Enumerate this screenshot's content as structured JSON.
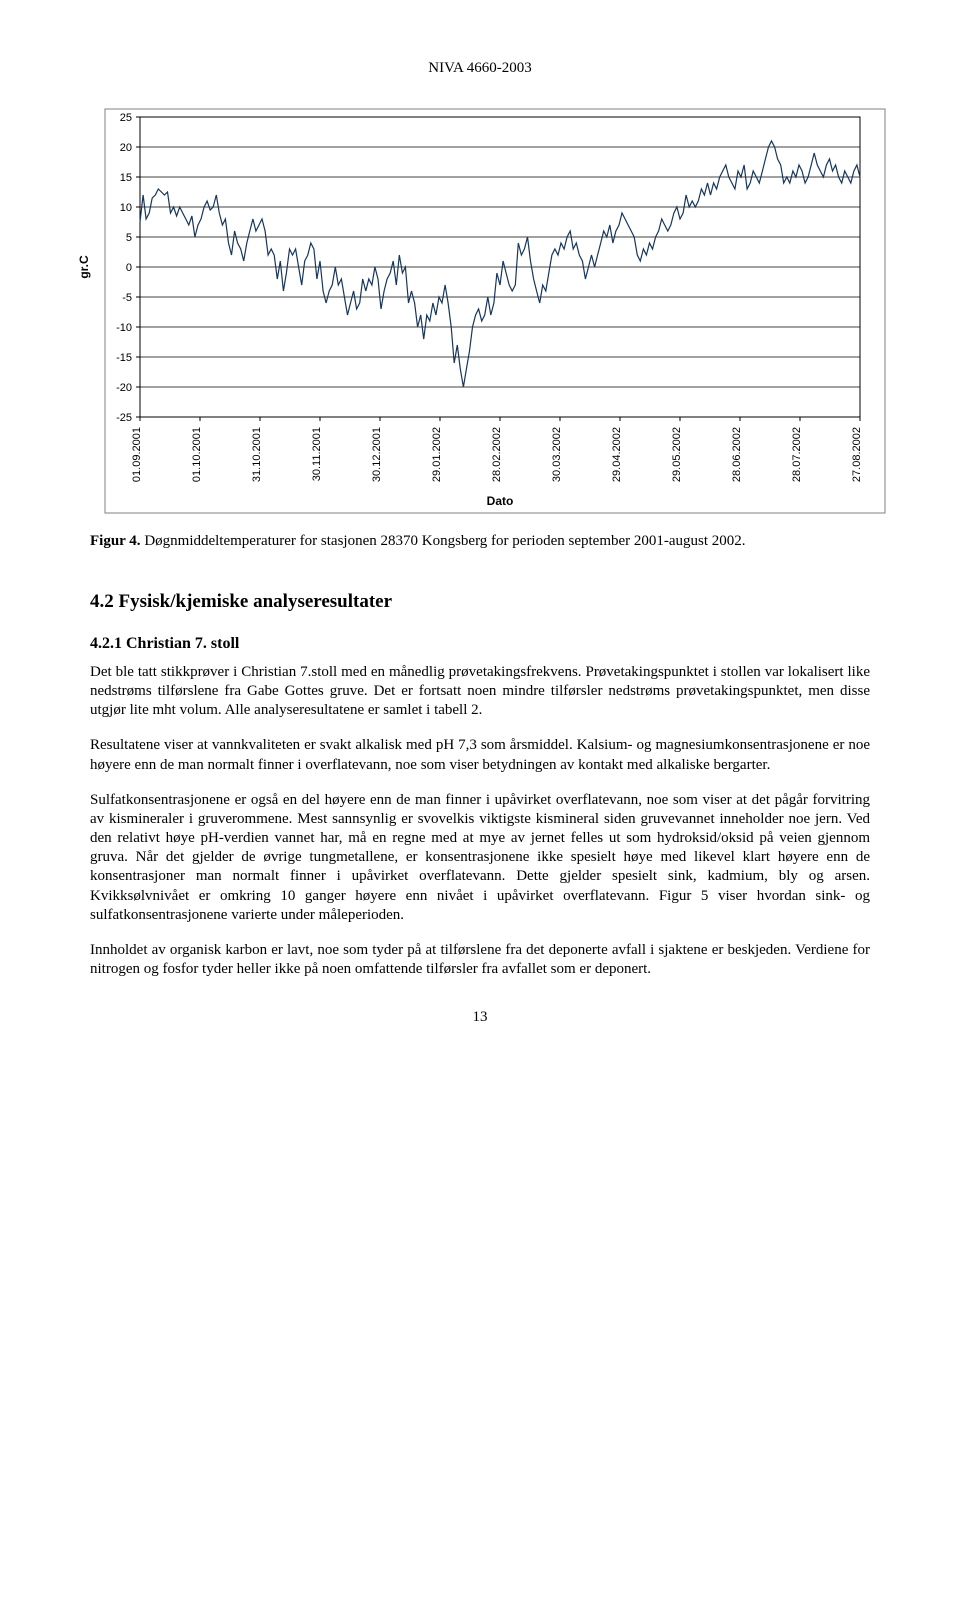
{
  "header": {
    "code": "NIVA 4660-2003"
  },
  "chart": {
    "type": "line",
    "ylabel": "gr.C",
    "xlabel": "Dato",
    "ylim": [
      -25,
      25
    ],
    "ytick_step": 5,
    "yticks": [
      -25,
      -20,
      -15,
      -10,
      -5,
      0,
      5,
      10,
      15,
      20,
      25
    ],
    "x_categories": [
      "01.09.2001",
      "01.10.2001",
      "31.10.2001",
      "30.11.2001",
      "30.12.2001",
      "29.01.2002",
      "28.02.2002",
      "30.03.2002",
      "29.04.2002",
      "29.05.2002",
      "28.06.2002",
      "28.07.2002",
      "27.08.2002"
    ],
    "line_color": "#17365d",
    "line_width": 1.2,
    "grid_color": "#000000",
    "border_color": "#808080",
    "plot_bg": "#ffffff",
    "font": {
      "tick_size": 11,
      "label_size": 12,
      "weight_label": "bold"
    },
    "series": [
      7.5,
      12,
      8,
      9,
      11.5,
      12,
      13,
      12.5,
      12,
      12.5,
      9,
      10,
      8.5,
      10,
      9,
      8,
      7,
      8.5,
      5,
      7,
      8,
      10,
      11,
      9.5,
      10,
      12,
      9,
      7,
      8,
      4,
      2,
      6,
      4,
      3,
      1,
      4,
      6,
      8,
      6,
      7,
      8,
      6,
      2,
      3,
      2,
      -2,
      1,
      -4,
      -1,
      3,
      2,
      3,
      0,
      -3,
      1,
      2,
      4,
      3,
      -2,
      1,
      -4,
      -6,
      -4,
      -3,
      0,
      -3,
      -2,
      -5,
      -8,
      -6,
      -4,
      -7,
      -6,
      -2,
      -4,
      -2,
      -3,
      0,
      -2,
      -7,
      -4,
      -2,
      -1,
      1,
      -3,
      2,
      -1,
      0,
      -6,
      -4,
      -6,
      -10,
      -8,
      -12,
      -8,
      -9,
      -6,
      -8,
      -5,
      -6,
      -3,
      -6,
      -10,
      -16,
      -13,
      -17,
      -20,
      -17,
      -14,
      -10,
      -8,
      -7,
      -9,
      -8,
      -5,
      -8,
      -6,
      -1,
      -3,
      1,
      -1,
      -3,
      -4,
      -3,
      4,
      2,
      3,
      5,
      1,
      -2,
      -4,
      -6,
      -3,
      -4,
      -1,
      2,
      3,
      2,
      4,
      3,
      5,
      6,
      3,
      4,
      2,
      1,
      -2,
      0,
      2,
      0,
      2,
      4,
      6,
      5,
      7,
      4,
      6,
      7,
      9,
      8,
      7,
      6,
      5,
      2,
      1,
      3,
      2,
      4,
      3,
      5,
      6,
      8,
      7,
      6,
      7,
      9,
      10,
      8,
      9,
      12,
      10,
      11,
      10,
      11,
      13,
      12,
      14,
      12,
      14,
      13,
      15,
      16,
      17,
      15,
      14,
      13,
      16,
      15,
      17,
      13,
      14,
      16,
      15,
      14,
      16,
      18,
      20,
      21,
      20,
      18,
      17,
      14,
      15,
      14,
      16,
      15,
      17,
      16,
      14,
      15,
      17,
      19,
      17,
      16,
      15,
      17,
      18,
      16,
      17,
      15,
      14,
      16,
      15,
      14,
      16,
      17,
      15
    ]
  },
  "captions": {
    "fig4_prefix": "Figur 4.",
    "fig4_text": " Døgnmiddeltemperaturer for stasjonen 28370 Kongsberg for perioden september 2001-august 2002."
  },
  "headings": {
    "sec42": "4.2 Fysisk/kjemiske analyseresultater",
    "sec421": "4.2.1 Christian 7. stoll"
  },
  "paragraphs": {
    "p1": "Det ble tatt stikkprøver i Christian 7.stoll med en månedlig prøvetakingsfrekvens. Prøvetakingspunktet i stollen var lokalisert like nedstrøms tilførslene fra Gabe Gottes gruve. Det er fortsatt noen mindre tilførsler nedstrøms prøvetakingspunktet, men disse utgjør lite mht volum. Alle analyseresultatene er samlet i tabell 2.",
    "p2": "Resultatene viser at vannkvaliteten er svakt alkalisk med pH 7,3 som årsmiddel. Kalsium- og magnesiumkonsentrasjonene er noe høyere enn de man normalt finner i overflatevann, noe som viser betydningen av kontakt med alkaliske bergarter.",
    "p3": "Sulfatkonsentrasjonene er også en del høyere enn de man finner i upåvirket overflatevann, noe som viser at det pågår forvitring av kismineraler i gruverommene. Mest sannsynlig er svovelkis viktigste kismineral siden gruvevannet inneholder noe jern. Ved den relativt høye pH-verdien vannet har, må en regne med at mye av jernet felles ut som hydroksid/oksid på veien gjennom gruva. Når det gjelder de øvrige tungmetallene, er konsentrasjonene ikke spesielt høye med likevel klart høyere enn de konsentrasjoner man normalt finner i upåvirket overflatevann. Dette gjelder spesielt sink, kadmium, bly og arsen. Kvikksølvnivået er omkring 10 ganger høyere enn nivået i upåvirket overflatevann. Figur 5 viser hvordan sink- og sulfatkonsentrasjonene varierte under måleperioden.",
    "p4": "Innholdet av organisk karbon er lavt, noe som tyder på at tilførslene fra det deponerte avfall i sjaktene er beskjeden. Verdiene for nitrogen og fosfor tyder heller ikke på noen omfattende tilførsler fra avfallet som er deponert."
  },
  "footer": {
    "page_no": "13"
  }
}
